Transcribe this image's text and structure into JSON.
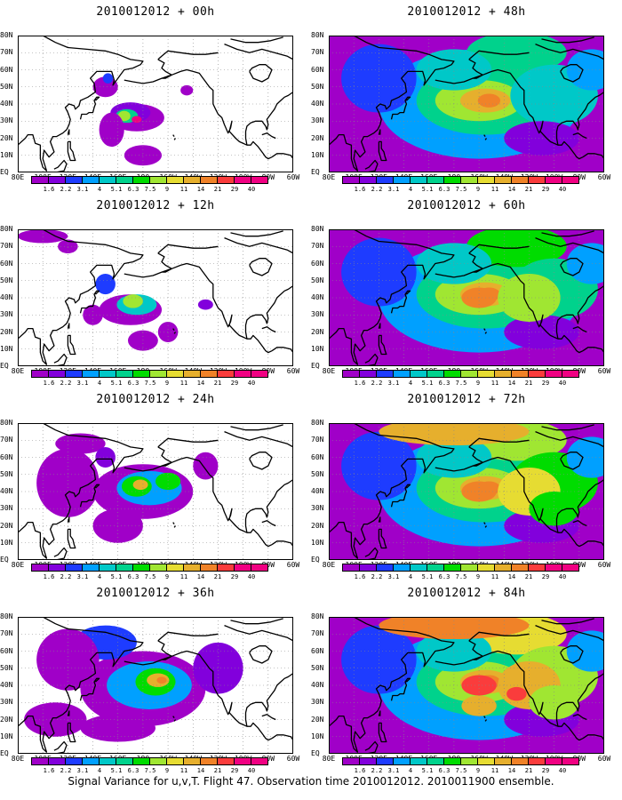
{
  "panels": [
    {
      "title": "2010012012 + 00h",
      "level": 0
    },
    {
      "title": "2010012012 + 48h",
      "level": 4
    },
    {
      "title": "2010012012 + 12h",
      "level": 1
    },
    {
      "title": "2010012012 + 60h",
      "level": 5
    },
    {
      "title": "2010012012 + 24h",
      "level": 2
    },
    {
      "title": "2010012012 + 72h",
      "level": 6
    },
    {
      "title": "2010012012 + 36h",
      "level": 3
    },
    {
      "title": "2010012012 + 84h",
      "level": 7
    }
  ],
  "lat_labels": [
    "80N",
    "70N",
    "60N",
    "50N",
    "40N",
    "30N",
    "20N",
    "10N",
    "EQ"
  ],
  "lon_labels": [
    "80E",
    "100E",
    "120E",
    "140E",
    "160E",
    "180",
    "160W",
    "140W",
    "120W",
    "100W",
    "80W",
    "60W"
  ],
  "legend": {
    "labels": [
      "1.6",
      "2.2",
      "3.1",
      "4",
      "5.1",
      "6.3",
      "7.5",
      "9",
      "11",
      "14",
      "21",
      "29",
      "40"
    ],
    "colors": [
      "#a000c8",
      "#8200dc",
      "#1e3cff",
      "#00a0ff",
      "#00c8c8",
      "#00d28c",
      "#00dc00",
      "#a0e632",
      "#e6dc32",
      "#e6af2d",
      "#f08228",
      "#fa3c3c",
      "#f00082"
    ]
  },
  "caption": "Signal Variance for u,v,T. Flight 47. Observation time 2010012012. 2010011900 ensemble."
}
